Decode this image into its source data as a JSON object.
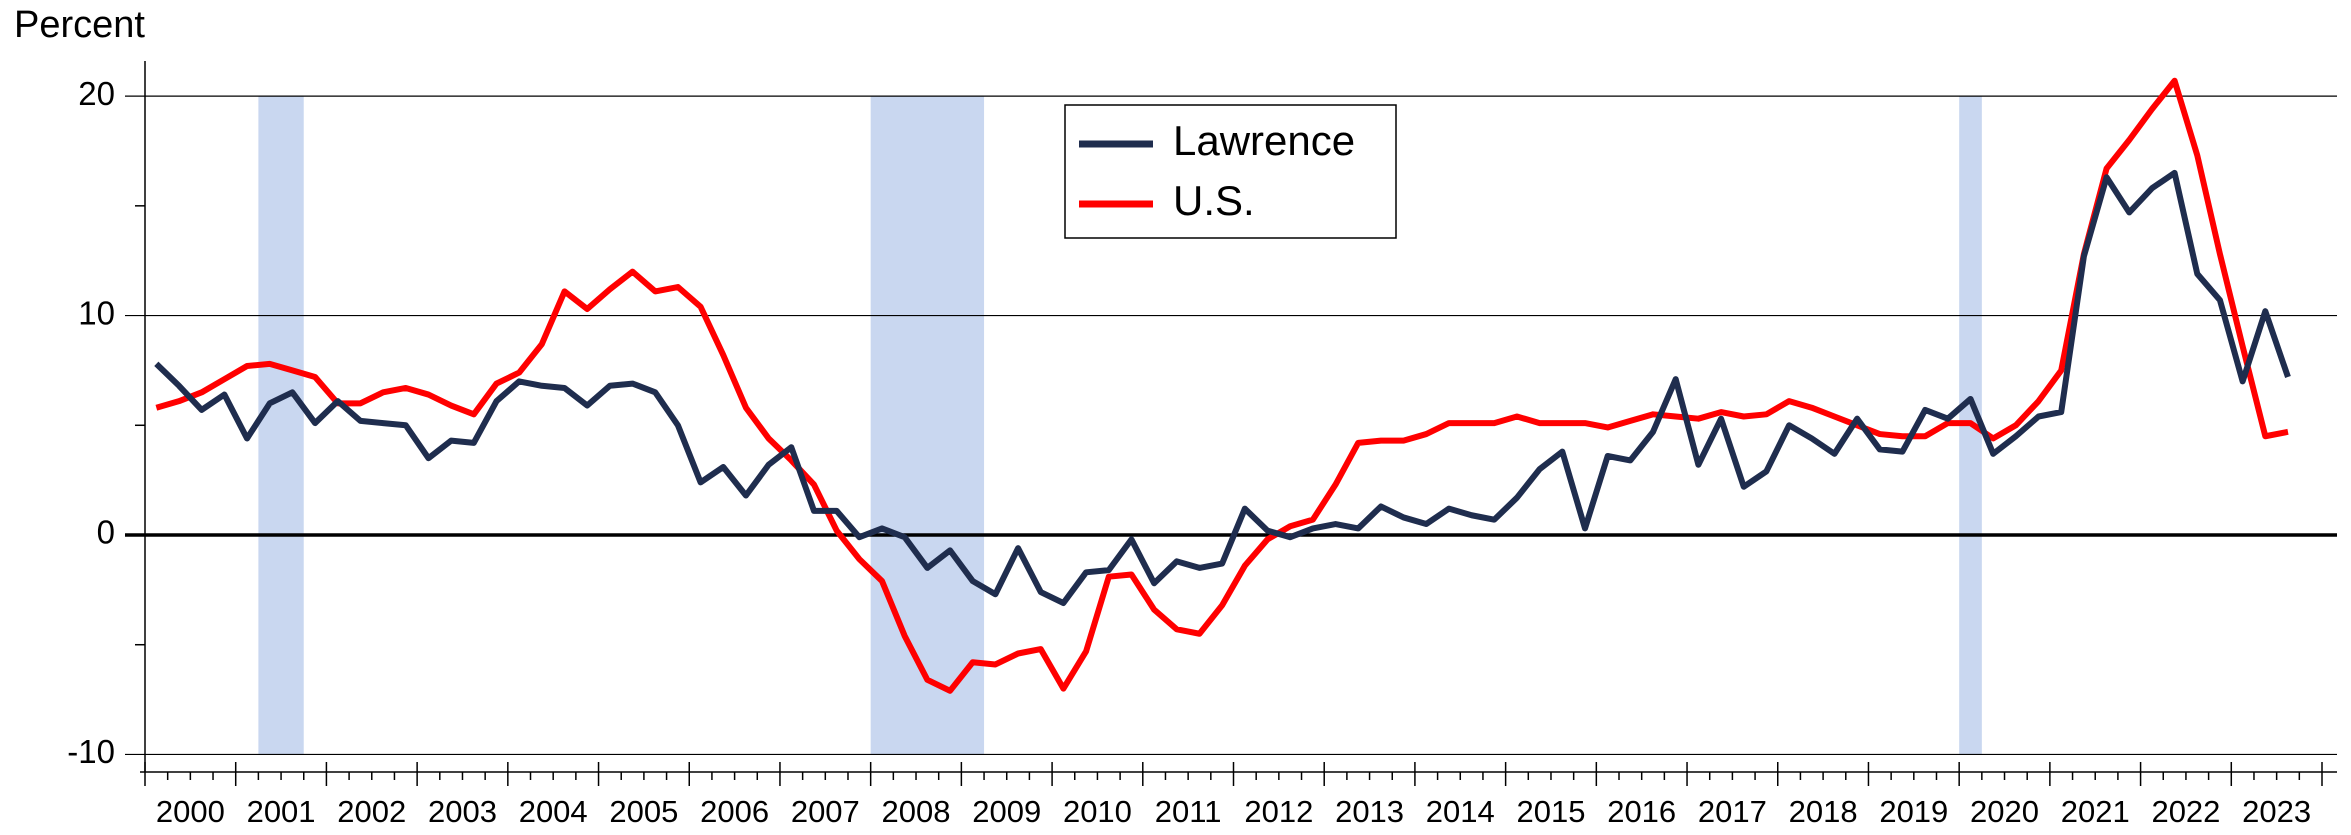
{
  "chart_data": {
    "type": "line",
    "y_axis_label": "Percent",
    "x": [
      2000.125,
      2000.375,
      2000.625,
      2000.875,
      2001.125,
      2001.375,
      2001.625,
      2001.875,
      2002.125,
      2002.375,
      2002.625,
      2002.875,
      2003.125,
      2003.375,
      2003.625,
      2003.875,
      2004.125,
      2004.375,
      2004.625,
      2004.875,
      2005.125,
      2005.375,
      2005.625,
      2005.875,
      2006.125,
      2006.375,
      2006.625,
      2006.875,
      2007.125,
      2007.375,
      2007.625,
      2007.875,
      2008.125,
      2008.375,
      2008.625,
      2008.875,
      2009.125,
      2009.375,
      2009.625,
      2009.875,
      2010.125,
      2010.375,
      2010.625,
      2010.875,
      2011.125,
      2011.375,
      2011.625,
      2011.875,
      2012.125,
      2012.375,
      2012.625,
      2012.875,
      2013.125,
      2013.375,
      2013.625,
      2013.875,
      2014.125,
      2014.375,
      2014.625,
      2014.875,
      2015.125,
      2015.375,
      2015.625,
      2015.875,
      2016.125,
      2016.375,
      2016.625,
      2016.875,
      2017.125,
      2017.375,
      2017.625,
      2017.875,
      2018.125,
      2018.375,
      2018.625,
      2018.875,
      2019.125,
      2019.375,
      2019.625,
      2019.875,
      2020.125,
      2020.375,
      2020.625,
      2020.875,
      2021.125,
      2021.375,
      2021.625,
      2021.875,
      2022.125,
      2022.375,
      2022.625,
      2022.875,
      2023.125,
      2023.375,
      2023.625
    ],
    "series": [
      {
        "name": "Lawrence",
        "color": "#1f2d4e",
        "values": [
          7.8,
          6.8,
          5.7,
          6.4,
          4.4,
          6.0,
          6.5,
          5.1,
          6.1,
          5.2,
          5.1,
          5.0,
          3.5,
          4.3,
          4.2,
          6.1,
          7.0,
          6.8,
          6.7,
          5.9,
          6.8,
          6.9,
          6.5,
          5.0,
          2.4,
          3.1,
          1.8,
          3.2,
          4.0,
          1.1,
          1.1,
          -0.1,
          0.3,
          -0.1,
          -1.5,
          -0.7,
          -2.1,
          -2.7,
          -0.6,
          -2.6,
          -3.1,
          -1.7,
          -1.6,
          -0.2,
          -2.2,
          -1.2,
          -1.5,
          -1.3,
          1.2,
          0.2,
          -0.1,
          0.3,
          0.5,
          0.3,
          1.3,
          0.8,
          0.5,
          1.2,
          0.9,
          0.7,
          1.7,
          3.0,
          3.8,
          0.3,
          3.6,
          3.4,
          4.7,
          7.1,
          3.2,
          5.3,
          2.2,
          2.9,
          5.0,
          4.4,
          3.7,
          5.3,
          3.9,
          3.8,
          5.7,
          5.3,
          6.2,
          3.7,
          4.5,
          5.4,
          5.6,
          12.7,
          16.3,
          14.7,
          15.8,
          16.5,
          11.9,
          10.7,
          7.0,
          10.2,
          7.2
        ]
      },
      {
        "name": "U.S.",
        "color": "#ff0000",
        "values": [
          5.8,
          6.1,
          6.5,
          7.1,
          7.7,
          7.8,
          7.5,
          7.2,
          6.0,
          6.0,
          6.5,
          6.7,
          6.4,
          5.9,
          5.5,
          6.9,
          7.4,
          8.7,
          11.1,
          10.3,
          11.2,
          12.0,
          11.1,
          11.3,
          10.4,
          8.2,
          5.8,
          4.4,
          3.4,
          2.3,
          0.2,
          -1.1,
          -2.1,
          -4.6,
          -6.6,
          -7.1,
          -5.8,
          -5.9,
          -5.4,
          -5.2,
          -7.0,
          -5.3,
          -1.9,
          -1.8,
          -3.4,
          -4.3,
          -4.5,
          -3.2,
          -1.4,
          -0.2,
          0.4,
          0.7,
          2.3,
          4.2,
          4.3,
          4.3,
          4.6,
          5.1,
          5.1,
          5.1,
          5.4,
          5.1,
          5.1,
          5.1,
          4.9,
          5.2,
          5.5,
          5.4,
          5.3,
          5.6,
          5.4,
          5.5,
          6.1,
          5.8,
          5.4,
          5.0,
          4.6,
          4.5,
          4.5,
          5.1,
          5.1,
          4.4,
          5.0,
          6.1,
          7.5,
          12.8,
          16.7,
          18.0,
          19.4,
          20.7,
          17.3,
          12.8,
          8.6,
          4.5,
          4.7
        ]
      }
    ],
    "recessions": [
      [
        2001.25,
        2001.75
      ],
      [
        2008.0,
        2009.25
      ],
      [
        2020.0,
        2020.25
      ]
    ],
    "recession_color": "#c9d7f0",
    "xlim": [
      2000,
      2024
    ],
    "xticks": [
      2000,
      2001,
      2002,
      2003,
      2004,
      2005,
      2006,
      2007,
      2008,
      2009,
      2010,
      2011,
      2012,
      2013,
      2014,
      2015,
      2016,
      2017,
      2018,
      2019,
      2020,
      2021,
      2022,
      2023,
      2024
    ],
    "year_labels": [
      2000,
      2001,
      2002,
      2003,
      2004,
      2005,
      2006,
      2007,
      2008,
      2009,
      2010,
      2011,
      2012,
      2013,
      2014,
      2015,
      2016,
      2017,
      2018,
      2019,
      2020,
      2021,
      2022,
      2023
    ],
    "ylim": [
      -10.8,
      21.6
    ],
    "yticks": [
      -10,
      0,
      10,
      20
    ],
    "minor_yticks": [
      -5,
      5,
      15
    ],
    "grid": true,
    "legend": "top-center"
  }
}
